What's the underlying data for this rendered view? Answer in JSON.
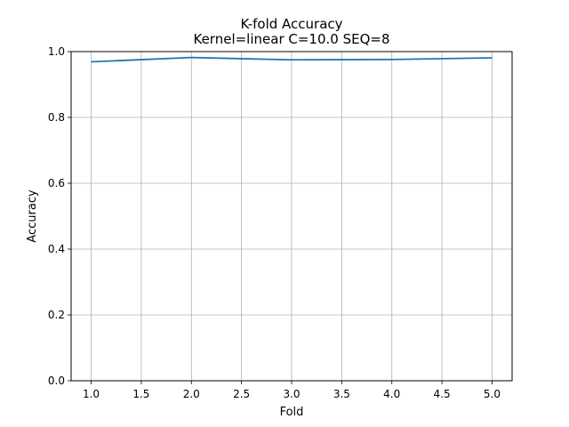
{
  "chart_data": {
    "type": "line",
    "title": "K-fold Accuracy",
    "subtitle": "Kernel=linear C=10.0 SEQ=8",
    "xlabel": "Fold",
    "ylabel": "Accuracy",
    "x": [
      1,
      2,
      3,
      4,
      5
    ],
    "series": [
      {
        "values": [
          0.969,
          0.982,
          0.975,
          0.976,
          0.981
        ]
      }
    ],
    "xlim": [
      0.8,
      5.2
    ],
    "ylim": [
      0,
      1.0
    ],
    "xticks": [
      "1.0",
      "1.5",
      "2.0",
      "2.5",
      "3.0",
      "3.5",
      "4.0",
      "4.5",
      "5.0"
    ],
    "yticks": [
      "0.0",
      "0.2",
      "0.4",
      "0.6",
      "0.8",
      "1.0"
    ],
    "grid": true,
    "line_color": "#1f77b4",
    "grid_color": "#b0b0b0"
  }
}
